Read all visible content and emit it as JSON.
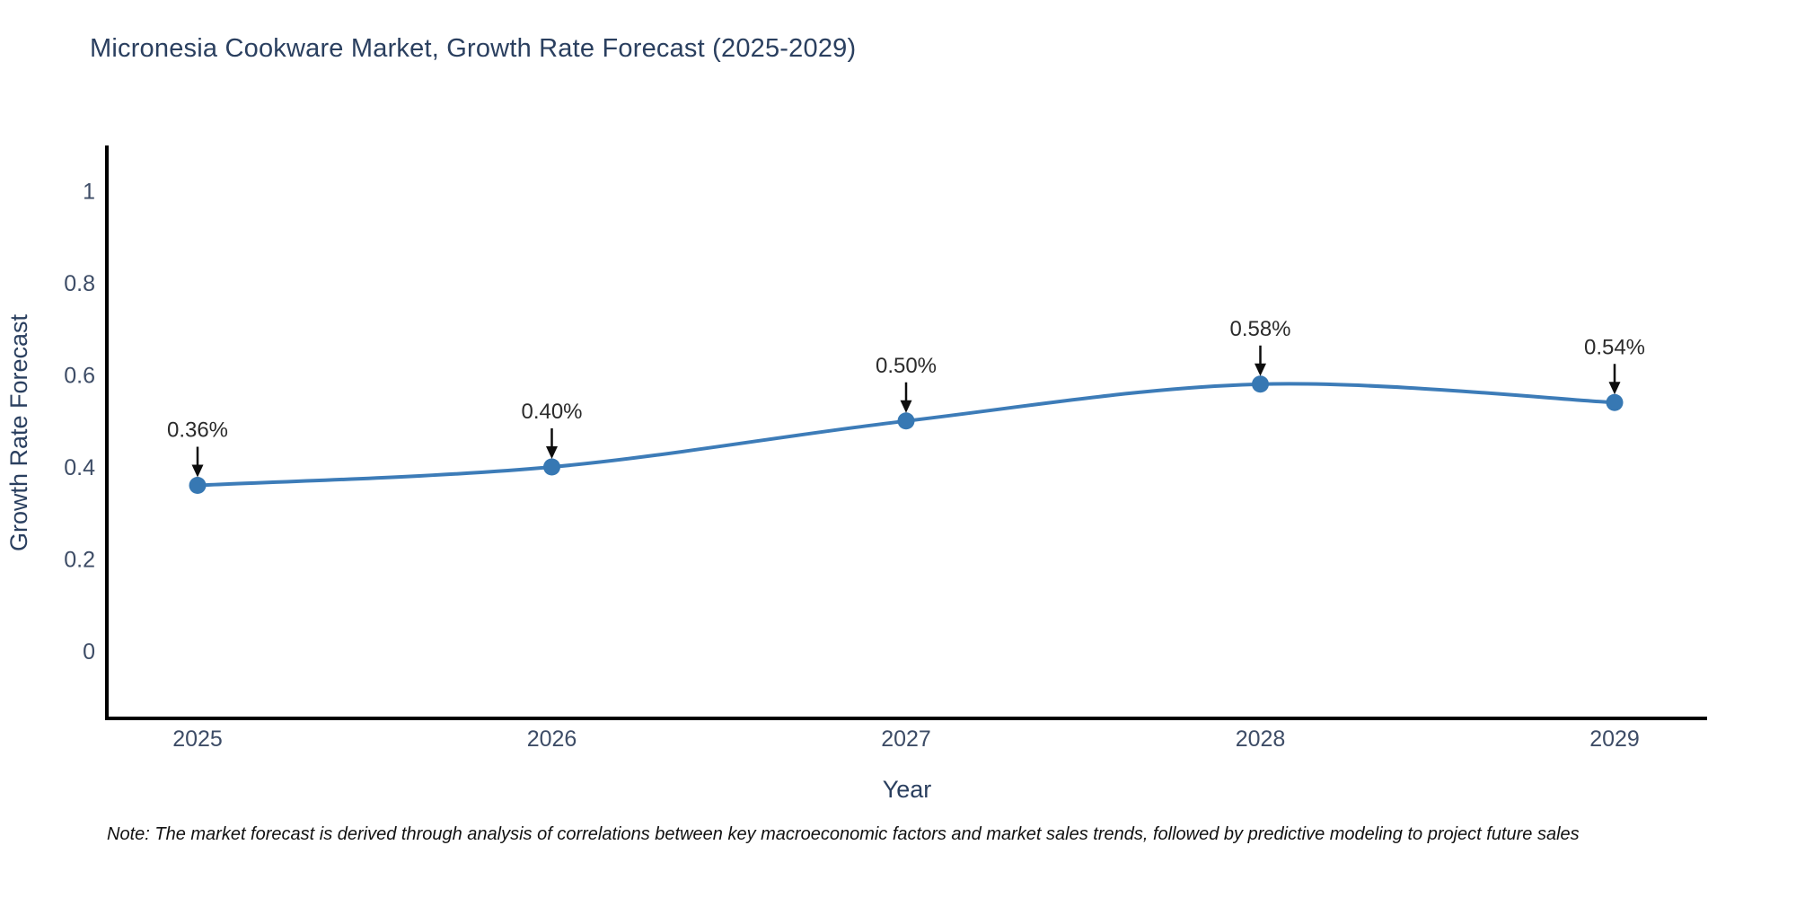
{
  "title": "Micronesia Cookware Market, Growth Rate Forecast (2025-2029)",
  "note": "Note: The market forecast is derived through analysis of correlations between key macroeconomic factors and market sales trends, followed by predictive modeling to project future sales",
  "chart_data": {
    "type": "line",
    "title": "Micronesia Cookware Market, Growth Rate Forecast (2025-2029)",
    "xlabel": "Year",
    "ylabel": "Growth Rate Forecast",
    "x": [
      2025,
      2026,
      2027,
      2028,
      2029
    ],
    "categories": [
      "2025",
      "2026",
      "2027",
      "2028",
      "2029"
    ],
    "values": [
      0.36,
      0.4,
      0.5,
      0.58,
      0.54
    ],
    "point_labels": [
      "0.36%",
      "0.40%",
      "0.50%",
      "0.58%",
      "0.54%"
    ],
    "yticks": [
      0,
      0.2,
      0.4,
      0.6,
      0.8,
      1
    ],
    "ytick_labels": [
      "0",
      "0.2",
      "0.4",
      "0.6",
      "0.8",
      "1"
    ],
    "ylim": [
      -0.146,
      1.098
    ],
    "xlim": [
      2024.74,
      2029.26
    ],
    "grid": false,
    "legend": "none",
    "smooth": true,
    "colors": {
      "line": "#3d7cb8",
      "marker": "#3778b3",
      "axis": "#000000",
      "title_text": "#2a3f5f",
      "tick_text": "#3d4c66",
      "annotation_text": "#2b2b2b",
      "arrow": "#0d0d0d",
      "note_text": "#111111"
    }
  }
}
